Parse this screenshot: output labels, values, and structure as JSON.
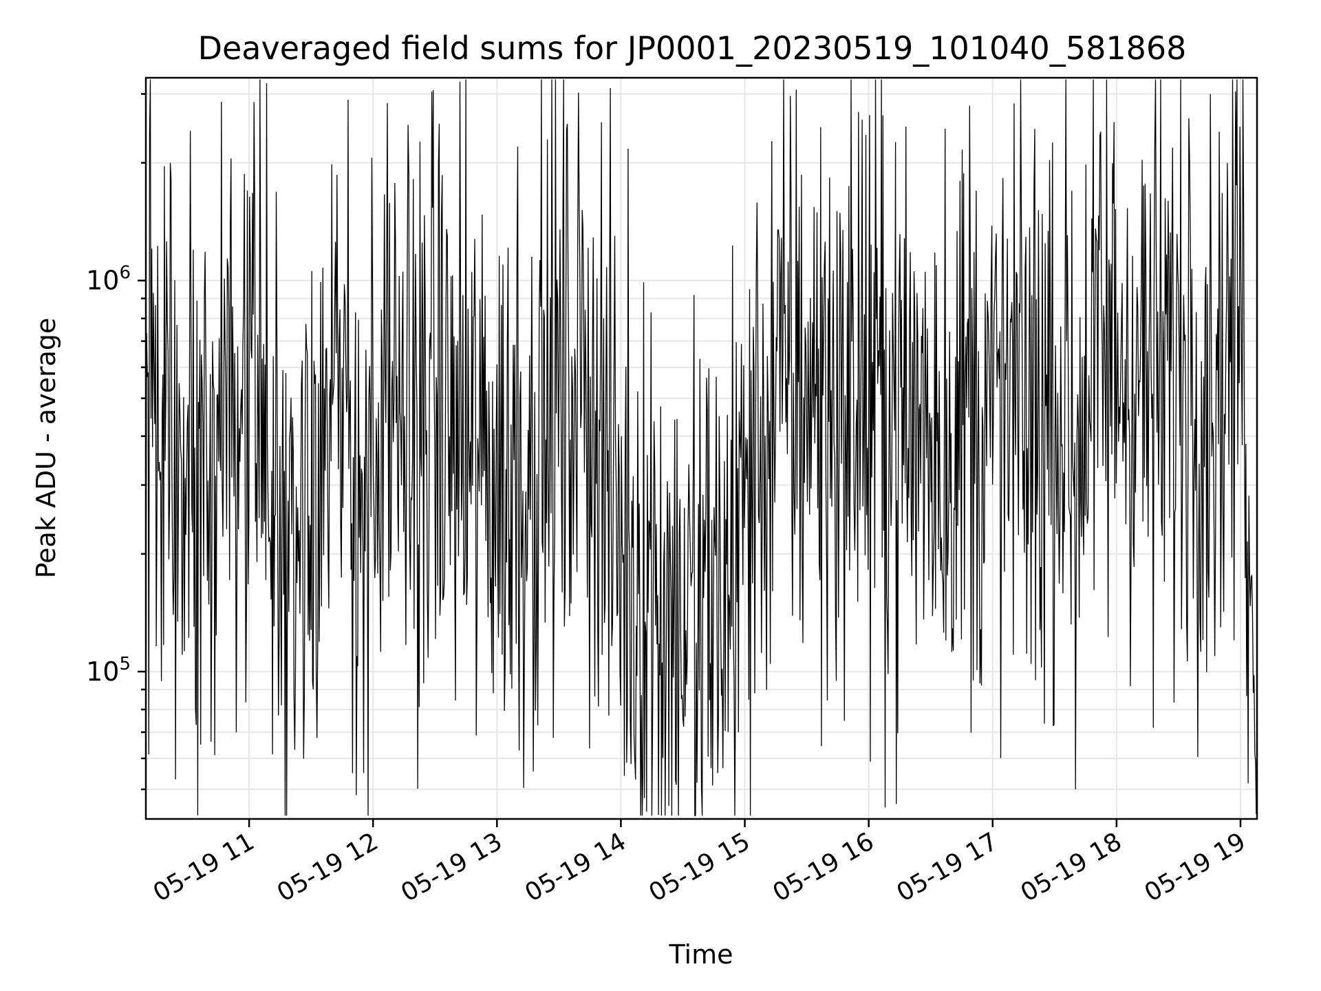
{
  "chart_data": {
    "type": "line",
    "title": "Deaveraged field sums for JP0001_20230519_101040_581868",
    "xlabel": "Time",
    "ylabel": "Peak ADU - average",
    "yscale": "log",
    "ylim": [
      42000,
      3300000
    ],
    "xlim": [
      "2023-05-19 10:10",
      "2023-05-19 19:08"
    ],
    "grid": true,
    "legend": "none",
    "x_ticks": [
      {
        "label": "05-19 11",
        "time": "2023-05-19 11:00"
      },
      {
        "label": "05-19 12",
        "time": "2023-05-19 12:00"
      },
      {
        "label": "05-19 13",
        "time": "2023-05-19 13:00"
      },
      {
        "label": "05-19 14",
        "time": "2023-05-19 14:00"
      },
      {
        "label": "05-19 15",
        "time": "2023-05-19 15:00"
      },
      {
        "label": "05-19 16",
        "time": "2023-05-19 16:00"
      },
      {
        "label": "05-19 17",
        "time": "2023-05-19 17:00"
      },
      {
        "label": "05-19 18",
        "time": "2023-05-19 18:00"
      },
      {
        "label": "05-19 19",
        "time": "2023-05-19 19:00"
      }
    ],
    "y_ticks": [
      {
        "base": "10",
        "exp": "5",
        "value": 100000
      },
      {
        "base": "10",
        "exp": "6",
        "value": 1000000
      }
    ],
    "series": [
      {
        "color": "#000000",
        "points": [
          [
            "2023-05-19 10:10",
            700000
          ],
          [
            "2023-05-19 10:17",
            480000
          ],
          [
            "2023-05-19 10:25",
            260000
          ],
          [
            "2023-05-19 10:30",
            450000
          ],
          [
            "2023-05-19 10:40",
            350000
          ],
          [
            "2023-05-19 10:50",
            480000
          ],
          [
            "2023-05-19 11:00",
            380000
          ],
          [
            "2023-05-19 11:10",
            330000
          ],
          [
            "2023-05-19 11:20",
            190000
          ],
          [
            "2023-05-19 11:30",
            400000
          ],
          [
            "2023-05-19 11:40",
            380000
          ],
          [
            "2023-05-19 11:50",
            330000
          ],
          [
            "2023-05-19 12:00",
            280000
          ],
          [
            "2023-05-19 12:10",
            400000
          ],
          [
            "2023-05-19 12:20",
            450000
          ],
          [
            "2023-05-19 12:30",
            520000
          ],
          [
            "2023-05-19 12:40",
            380000
          ],
          [
            "2023-05-19 12:50",
            350000
          ],
          [
            "2023-05-19 13:00",
            320000
          ],
          [
            "2023-05-19 13:10",
            290000
          ],
          [
            "2023-05-19 13:20",
            420000
          ],
          [
            "2023-05-19 13:30",
            500000
          ],
          [
            "2023-05-19 13:40",
            620000
          ],
          [
            "2023-05-19 13:50",
            420000
          ],
          [
            "2023-05-19 14:00",
            210000
          ],
          [
            "2023-05-19 14:10",
            180000
          ],
          [
            "2023-05-19 14:20",
            150000
          ],
          [
            "2023-05-19 14:30",
            135000
          ],
          [
            "2023-05-19 14:40",
            140000
          ],
          [
            "2023-05-19 14:50",
            160000
          ],
          [
            "2023-05-19 15:00",
            270000
          ],
          [
            "2023-05-19 15:10",
            430000
          ],
          [
            "2023-05-19 15:20",
            560000
          ],
          [
            "2023-05-19 15:30",
            520000
          ],
          [
            "2023-05-19 15:40",
            500000
          ],
          [
            "2023-05-19 15:50",
            470000
          ],
          [
            "2023-05-19 16:00",
            500000
          ],
          [
            "2023-05-19 16:10",
            480000
          ],
          [
            "2023-05-19 16:20",
            420000
          ],
          [
            "2023-05-19 16:30",
            440000
          ],
          [
            "2023-05-19 16:40",
            400000
          ],
          [
            "2023-05-19 16:50",
            450000
          ],
          [
            "2023-05-19 17:00",
            430000
          ],
          [
            "2023-05-19 17:10",
            470000
          ],
          [
            "2023-05-19 17:20",
            440000
          ],
          [
            "2023-05-19 17:30",
            520000
          ],
          [
            "2023-05-19 17:40",
            420000
          ],
          [
            "2023-05-19 17:50",
            620000
          ],
          [
            "2023-05-19 18:00",
            650000
          ],
          [
            "2023-05-19 18:10",
            600000
          ],
          [
            "2023-05-19 18:20",
            550000
          ],
          [
            "2023-05-19 18:30",
            620000
          ],
          [
            "2023-05-19 18:40",
            580000
          ],
          [
            "2023-05-19 18:50",
            560000
          ],
          [
            "2023-05-19 19:00",
            1000000
          ],
          [
            "2023-05-19 19:03",
            400000
          ],
          [
            "2023-05-19 19:06",
            110000
          ],
          [
            "2023-05-19 19:08",
            50000
          ]
        ],
        "noise_amplitude_decades": 0.55
      }
    ],
    "notable_peaks": [
      [
        "2023-05-19 10:22",
        2000000
      ],
      [
        "2023-05-19 11:48",
        2900000
      ],
      [
        "2023-05-19 13:10",
        2200000
      ],
      [
        "2023-05-19 15:55",
        2700000
      ],
      [
        "2023-05-19 16:49",
        2800000
      ],
      [
        "2023-05-19 18:35",
        2600000
      ]
    ],
    "notable_troughs": [
      [
        "2023-05-19 14:07",
        53000
      ],
      [
        "2023-05-19 14:37",
        52000
      ],
      [
        "2023-05-19 14:47",
        55000
      ],
      [
        "2023-05-19 17:40",
        50000
      ]
    ]
  }
}
